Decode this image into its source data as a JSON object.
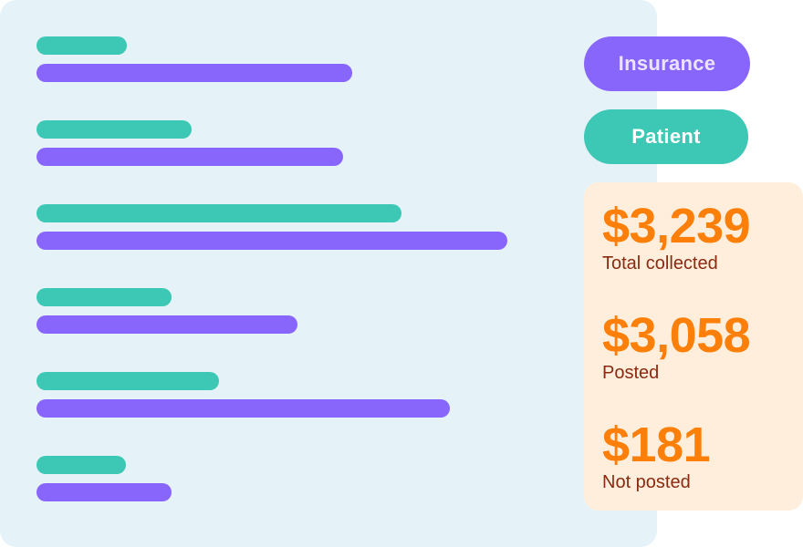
{
  "legend": {
    "insurance_label": "Insurance",
    "patient_label": "Patient"
  },
  "stats": [
    {
      "value": "$3,239",
      "label": "Total collected"
    },
    {
      "value": "$3,058",
      "label": "Posted"
    },
    {
      "value": "$181",
      "label": "Not posted"
    }
  ],
  "colors": {
    "panel_background": "#e5f3f8",
    "insurance": "#8966fb",
    "patient": "#3cc8b4",
    "stats_background": "#ffeedb",
    "stat_value": "#fb7f08",
    "stat_label": "#8a2a10"
  },
  "chart_data": {
    "type": "bar",
    "orientation": "horizontal",
    "categories": [
      "",
      "",
      "",
      "",
      "",
      ""
    ],
    "series": [
      {
        "name": "Patient",
        "color": "#3cc8b4",
        "values": [
          99,
          170,
          400,
          148,
          200,
          98
        ]
      },
      {
        "name": "Insurance",
        "color": "#8966fb",
        "values": [
          346,
          336,
          516,
          286,
          453,
          148
        ]
      }
    ],
    "title": "",
    "xlabel": "",
    "ylabel": "",
    "xlim": [
      0,
      600
    ],
    "grid": false,
    "legend_placement": "right"
  }
}
